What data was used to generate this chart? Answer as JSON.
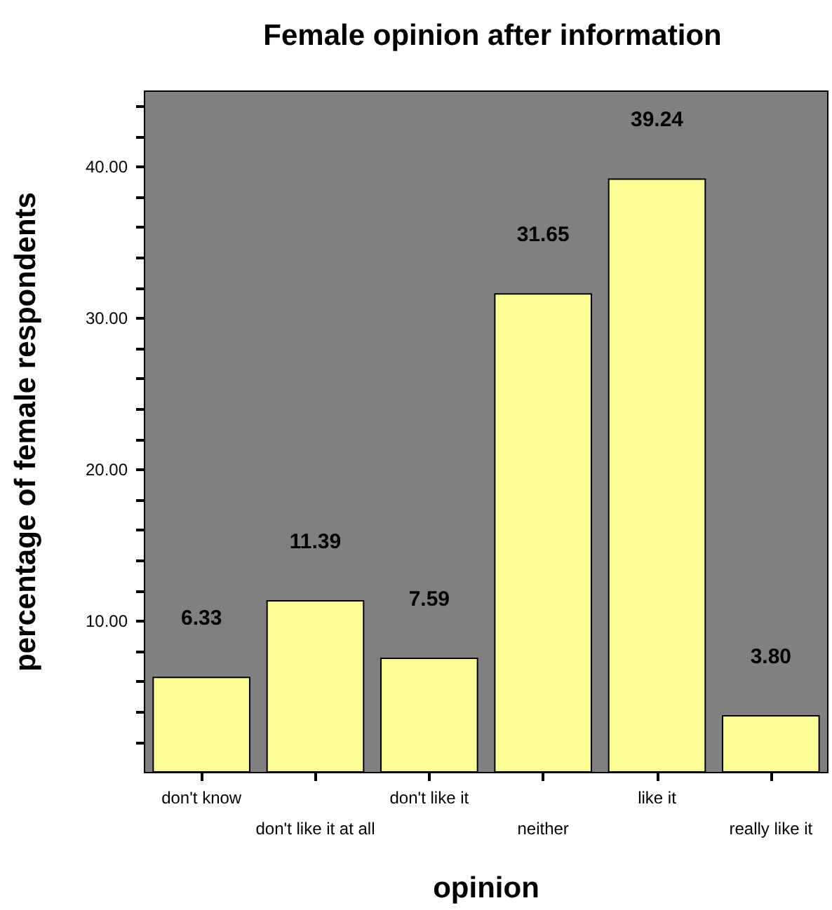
{
  "chart_data": {
    "type": "bar",
    "title": "Female opinion after information",
    "xlabel": "opinion",
    "ylabel": "percentage of female respondents",
    "categories": [
      "don't know",
      "don't like it at all",
      "don't like it",
      "neither",
      "like it",
      "really like it"
    ],
    "values": [
      6.33,
      11.39,
      7.59,
      31.65,
      39.24,
      3.8
    ],
    "value_labels": [
      "6.33",
      "11.39",
      "7.59",
      "31.65",
      "39.24",
      "3.80"
    ],
    "color": "#ffff99",
    "ylim": [
      0,
      45
    ],
    "yticks": [
      {
        "value": 2,
        "label": null
      },
      {
        "value": 4,
        "label": null
      },
      {
        "value": 6,
        "label": null
      },
      {
        "value": 8,
        "label": null
      },
      {
        "value": 10,
        "label": "10.00"
      },
      {
        "value": 12,
        "label": null
      },
      {
        "value": 14,
        "label": null
      },
      {
        "value": 16,
        "label": null
      },
      {
        "value": 18,
        "label": null
      },
      {
        "value": 20,
        "label": "20.00"
      },
      {
        "value": 22,
        "label": null
      },
      {
        "value": 24,
        "label": null
      },
      {
        "value": 26,
        "label": null
      },
      {
        "value": 28,
        "label": null
      },
      {
        "value": 30,
        "label": "30.00"
      },
      {
        "value": 32,
        "label": null
      },
      {
        "value": 34,
        "label": null
      },
      {
        "value": 36,
        "label": null
      },
      {
        "value": 38,
        "label": null
      },
      {
        "value": 40,
        "label": "40.00"
      },
      {
        "value": 42,
        "label": null
      },
      {
        "value": 44,
        "label": null
      }
    ],
    "grid": false
  }
}
